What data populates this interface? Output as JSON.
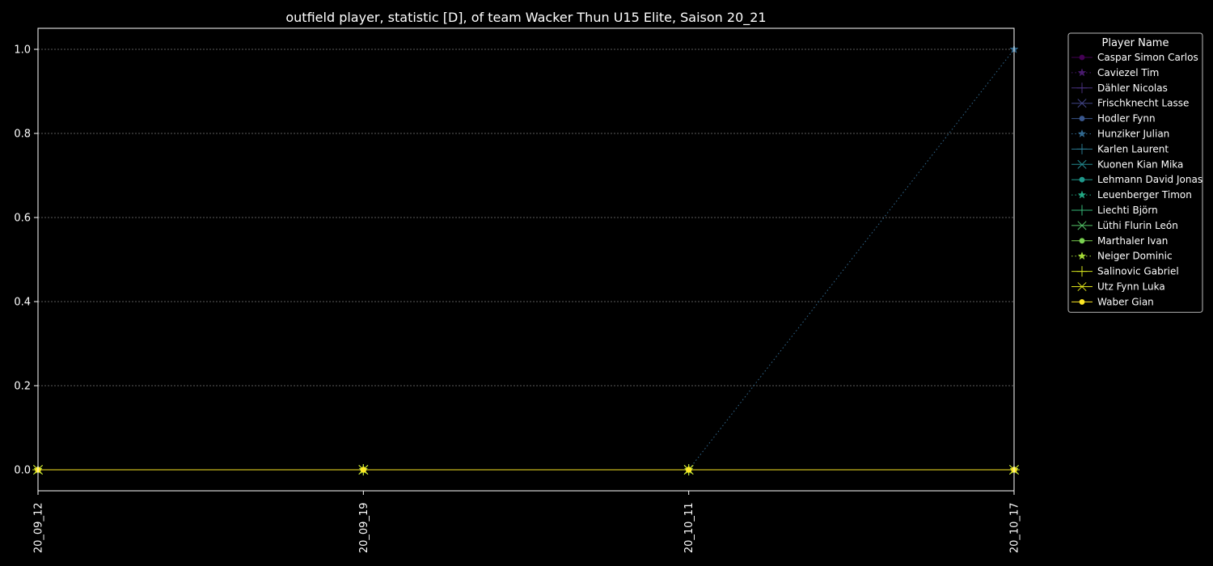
{
  "chart_data": {
    "type": "line",
    "title": "outfield player, statistic [D], of team Wacker Thun U15 Elite, Saison 20_21",
    "xlabel": "",
    "ylabel": "",
    "categories": [
      "20_09_12",
      "20_09_19",
      "20_10_11",
      "20_10_17"
    ],
    "ylim": [
      -0.05,
      1.05
    ],
    "yticks": [
      "0.0",
      "0.2",
      "0.4",
      "0.6",
      "0.8",
      "1.0"
    ],
    "ytick_values": [
      0.0,
      0.2,
      0.4,
      0.6,
      0.8,
      1.0
    ],
    "grid": true,
    "legend": {
      "title": "Player Name",
      "placement": "outside-right-top"
    },
    "series": [
      {
        "name": "Caspar Simon Carlos",
        "values": [
          0,
          0,
          0,
          0
        ],
        "color": "#440154",
        "marker": "circle",
        "dash": "solid"
      },
      {
        "name": "Caviezel Tim",
        "values": [
          0,
          0,
          0,
          0
        ],
        "color": "#481a6c",
        "marker": "star",
        "dash": "dotted"
      },
      {
        "name": "Dähler Nicolas",
        "values": [
          0,
          0,
          0,
          0
        ],
        "color": "#472f7d",
        "marker": "plus",
        "dash": "solid"
      },
      {
        "name": "Frischknecht Lasse",
        "values": [
          0,
          0,
          0,
          0
        ],
        "color": "#414487",
        "marker": "x",
        "dash": "solid"
      },
      {
        "name": "Hodler Fynn",
        "values": [
          0,
          0,
          0,
          0
        ],
        "color": "#39568c",
        "marker": "circle",
        "dash": "solid"
      },
      {
        "name": "Hunziker Julian",
        "values": [
          0,
          0,
          0,
          1
        ],
        "color": "#31688e",
        "marker": "star",
        "dash": "dotted"
      },
      {
        "name": "Karlen Laurent",
        "values": [
          0,
          0,
          0,
          0
        ],
        "color": "#2a788e",
        "marker": "plus",
        "dash": "solid"
      },
      {
        "name": "Kuonen Kian Mika",
        "values": [
          0,
          0,
          0,
          0
        ],
        "color": "#23888e",
        "marker": "x",
        "dash": "solid"
      },
      {
        "name": "Lehmann David Jonas",
        "values": [
          0,
          0,
          0,
          0
        ],
        "color": "#1f988b",
        "marker": "circle",
        "dash": "solid"
      },
      {
        "name": "Leuenberger Timon",
        "values": [
          0,
          0,
          0,
          0
        ],
        "color": "#22a884",
        "marker": "star",
        "dash": "dotted"
      },
      {
        "name": "Liechti Björn",
        "values": [
          0,
          0,
          0,
          0
        ],
        "color": "#35b779",
        "marker": "plus",
        "dash": "solid"
      },
      {
        "name": "Lüthi Flurin León",
        "values": [
          0,
          0,
          0,
          0
        ],
        "color": "#54c568",
        "marker": "x",
        "dash": "solid"
      },
      {
        "name": "Marthaler Ivan",
        "values": [
          0,
          0,
          0,
          0
        ],
        "color": "#7ad151",
        "marker": "circle",
        "dash": "solid"
      },
      {
        "name": "Neiger Dominic",
        "values": [
          0,
          0,
          0,
          0
        ],
        "color": "#a5db36",
        "marker": "star",
        "dash": "dotted"
      },
      {
        "name": "Salinovic Gabriel",
        "values": [
          0,
          0,
          0,
          0
        ],
        "color": "#d2e21b",
        "marker": "plus",
        "dash": "solid"
      },
      {
        "name": "Utz Fynn Luka",
        "values": [
          0,
          0,
          0,
          0
        ],
        "color": "#dfe318",
        "marker": "x",
        "dash": "solid"
      },
      {
        "name": "Waber Gian",
        "values": [
          0,
          0,
          0,
          0
        ],
        "color": "#fde725",
        "marker": "circle",
        "dash": "solid"
      }
    ]
  }
}
